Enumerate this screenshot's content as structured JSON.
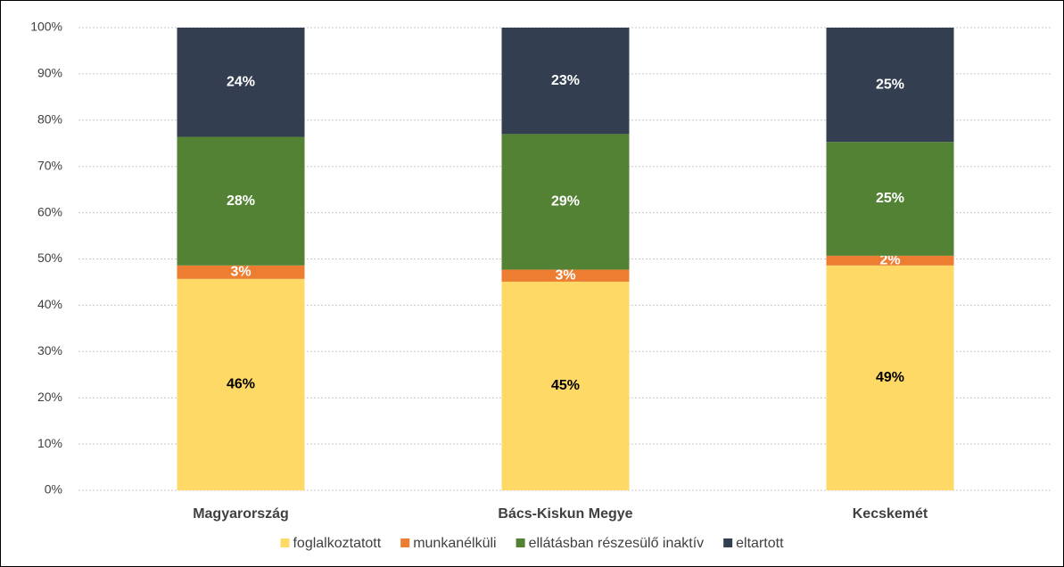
{
  "chart_data": {
    "type": "stacked_bar",
    "categories": [
      "Magyarország",
      "Bács-Kiskun Megye",
      "Kecskemét"
    ],
    "series": [
      {
        "name": "foglalkoztatott",
        "color": "#FFD966",
        "values": [
          45.7,
          45.1,
          48.6
        ],
        "value_labels": [
          "46%",
          "45%",
          "49%"
        ]
      },
      {
        "name": "munkanélküli",
        "color": "#ED7D31",
        "values": [
          2.9,
          2.6,
          2.1
        ],
        "value_labels": [
          "3%",
          "3%",
          "2%"
        ]
      },
      {
        "name": "ellátásban részesülő inaktív",
        "color": "#548235",
        "values": [
          27.8,
          29.3,
          24.6
        ],
        "value_labels": [
          "28%",
          "29%",
          "25%"
        ]
      },
      {
        "name": "eltartott",
        "color": "#333F50",
        "values": [
          23.6,
          23.0,
          24.7
        ],
        "value_labels": [
          "24%",
          "23%",
          "25%"
        ]
      }
    ],
    "ylim": [
      0,
      100
    ],
    "yticks": [
      {
        "value": 0,
        "label": "0%"
      },
      {
        "value": 10,
        "label": "10%"
      },
      {
        "value": 20,
        "label": "20%"
      },
      {
        "value": 30,
        "label": "30%"
      },
      {
        "value": 40,
        "label": "40%"
      },
      {
        "value": 50,
        "label": "50%"
      },
      {
        "value": 60,
        "label": "60%"
      },
      {
        "value": 70,
        "label": "70%"
      },
      {
        "value": 80,
        "label": "80%"
      },
      {
        "value": 90,
        "label": "90%"
      },
      {
        "value": 100,
        "label": "100%"
      }
    ],
    "grid": true,
    "legend": "bottom"
  }
}
